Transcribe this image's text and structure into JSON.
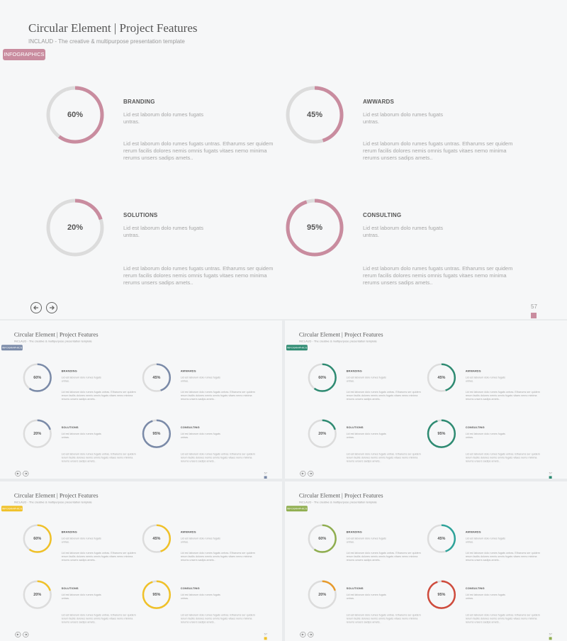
{
  "slide": {
    "title": "Circular Element | Project Features",
    "subtitle": "INCLAUD - The creative & multipurpose presentation template",
    "tag": "INFOGRAPHICS",
    "page_number": "57",
    "short_text": "Lid est laborum dolo rumes fugats untras.",
    "long_text": "Lid est laborum dolo rumes fugats untras. Etharums ser quidem rerum facilis dolores nemis omnis fugats vitaes nemo minima rerums unsers sadips amets..",
    "features": [
      {
        "name": "BRANDING",
        "percent": 60,
        "label": "60%"
      },
      {
        "name": "AWWARDS",
        "percent": 45,
        "label": "45%"
      },
      {
        "name": "SOLUTIONS",
        "percent": 20,
        "label": "20%"
      },
      {
        "name": "CONSULTING",
        "percent": 95,
        "label": "95%"
      }
    ],
    "ring_track_color": "#dcdcdc"
  },
  "variants": [
    {
      "tag_color": "#c98c9f",
      "ring_colors": [
        "#c98c9f",
        "#c98c9f",
        "#c98c9f",
        "#c98c9f"
      ]
    },
    {
      "tag_color": "#7a8aa8",
      "ring_colors": [
        "#7a8aa8",
        "#7a8aa8",
        "#7a8aa8",
        "#7a8aa8"
      ]
    },
    {
      "tag_color": "#2e8b72",
      "ring_colors": [
        "#2e8b72",
        "#2e8b72",
        "#2e8b72",
        "#2e8b72"
      ]
    },
    {
      "tag_color": "#f0c128",
      "ring_colors": [
        "#f0c128",
        "#f0c128",
        "#f0c128",
        "#f0c128"
      ]
    },
    {
      "tag_color": "#8fae4f",
      "ring_colors": [
        "#8fae4f",
        "#2ea39a",
        "#e79a2b",
        "#cf4b3c"
      ]
    }
  ],
  "icons": [
    "arrow-left-icon",
    "arrow-right-icon"
  ]
}
